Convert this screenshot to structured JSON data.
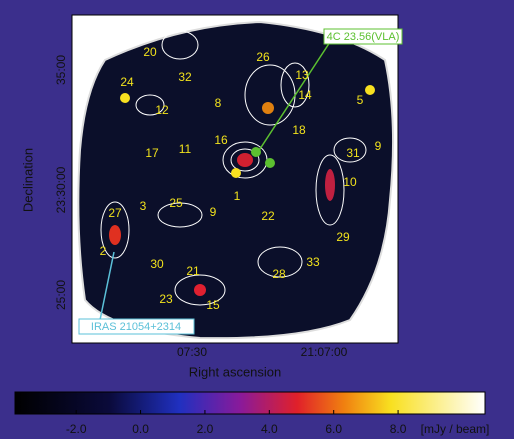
{
  "plot": {
    "xlabel": "Right ascension",
    "ylabel": "Declination",
    "xticks": [
      "07:30",
      "21:07:00"
    ],
    "yticks": [
      "35:00",
      "23:30:00",
      "25:00"
    ]
  },
  "annotations": [
    "4C 23.56(VLA)",
    "IRAS 21054+2314"
  ],
  "sources": [
    "1",
    "2",
    "3",
    "5",
    "8",
    "9",
    "9",
    "10",
    "11",
    "12",
    "13",
    "14",
    "15",
    "16",
    "17",
    "18",
    "20",
    "21",
    "22",
    "23",
    "24",
    "25",
    "26",
    "27",
    "28",
    "29",
    "30",
    "31",
    "32",
    "33"
  ],
  "colorbar": {
    "range": [
      -3.9,
      10.7
    ],
    "unit": "[mJy / beam]",
    "ticks": [
      {
        "value": -2,
        "label": "-2.0"
      },
      {
        "value": 0,
        "label": "0.0"
      },
      {
        "value": 2,
        "label": "2.0"
      },
      {
        "value": 4,
        "label": "4.0"
      },
      {
        "value": 6,
        "label": "6.0"
      },
      {
        "value": 8,
        "label": "8.0"
      }
    ]
  }
}
